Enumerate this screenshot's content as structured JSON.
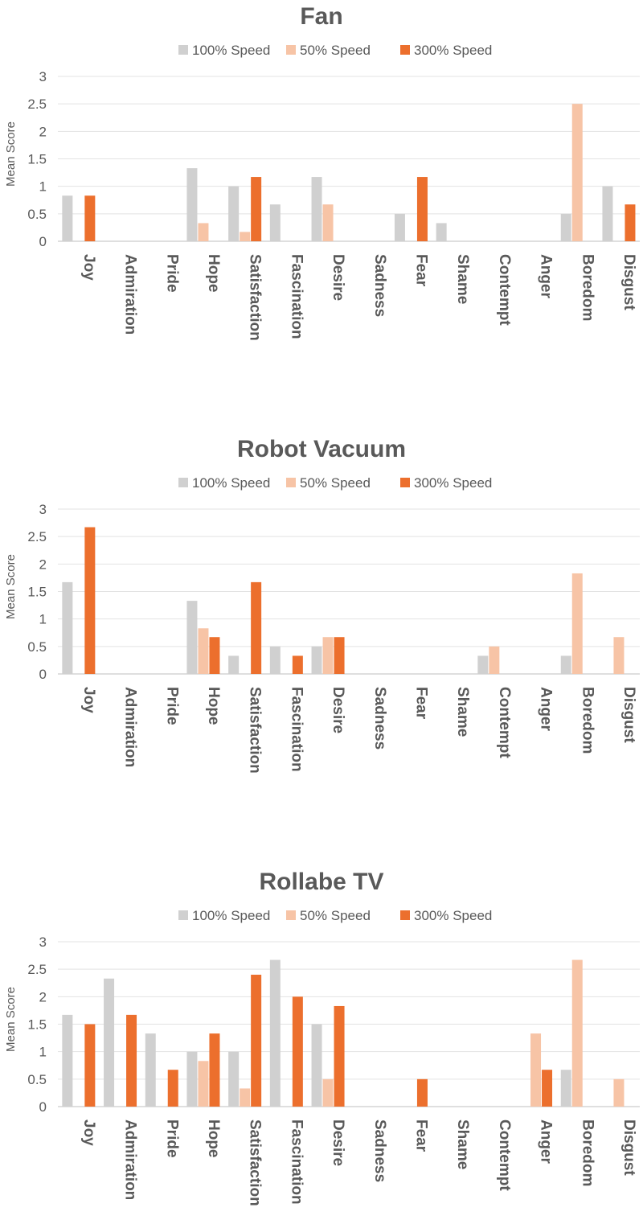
{
  "chart_data": [
    {
      "type": "bar",
      "title": "Fan",
      "ylabel": "Mean Score",
      "ylim": [
        0,
        3
      ],
      "yticks": [
        "0",
        "0.5",
        "1",
        "1.5",
        "2",
        "2.5",
        "3"
      ],
      "grid": true,
      "legend_position": "top",
      "categories": [
        "Joy",
        "Admiration",
        "Pride",
        "Hope",
        "Satisfaction",
        "Fascination",
        "Desire",
        "Sadness",
        "Fear",
        "Shame",
        "Contempt",
        "Anger",
        "Boredom",
        "Disgust"
      ],
      "series": [
        {
          "name": "100% Speed",
          "color": "#d0d0d0",
          "values": [
            0.83,
            0,
            0,
            1.33,
            1.0,
            0.67,
            1.17,
            0,
            0.5,
            0.33,
            0,
            0,
            0.5,
            1.0
          ]
        },
        {
          "name": "50% Speed",
          "color": "#f7c4a6",
          "values": [
            0,
            0,
            0,
            0.33,
            0.17,
            0,
            0.67,
            0,
            0,
            0,
            0,
            0,
            2.5,
            0
          ]
        },
        {
          "name": "300% Speed",
          "color": "#ec6f2d",
          "values": [
            0.83,
            0,
            0,
            0,
            1.17,
            0,
            0,
            0,
            1.17,
            0,
            0,
            0,
            0,
            0.67
          ]
        }
      ]
    },
    {
      "type": "bar",
      "title": "Robot Vacuum",
      "ylabel": "Mean Score",
      "ylim": [
        0,
        3
      ],
      "yticks": [
        "0",
        "0.5",
        "1",
        "1.5",
        "2",
        "2.5",
        "3"
      ],
      "grid": true,
      "legend_position": "top",
      "categories": [
        "Joy",
        "Admiration",
        "Pride",
        "Hope",
        "Satisfaction",
        "Fascination",
        "Desire",
        "Sadness",
        "Fear",
        "Shame",
        "Contempt",
        "Anger",
        "Boredom",
        "Disgust"
      ],
      "series": [
        {
          "name": "100% Speed",
          "color": "#d0d0d0",
          "values": [
            1.67,
            0,
            0,
            1.33,
            0.33,
            0.5,
            0.5,
            0,
            0,
            0,
            0.33,
            0,
            0.33,
            0
          ]
        },
        {
          "name": "50% Speed",
          "color": "#f7c4a6",
          "values": [
            0,
            0,
            0,
            0.83,
            0,
            0,
            0.67,
            0,
            0,
            0,
            0.5,
            0,
            1.83,
            0.67
          ]
        },
        {
          "name": "300% Speed",
          "color": "#ec6f2d",
          "values": [
            2.67,
            0,
            0,
            0.67,
            1.67,
            0.33,
            0.67,
            0,
            0,
            0,
            0,
            0,
            0,
            0
          ]
        }
      ]
    },
    {
      "type": "bar",
      "title": "Rollabe TV",
      "ylabel": "Mean Score",
      "ylim": [
        0,
        3
      ],
      "yticks": [
        "0",
        "0.5",
        "1",
        "1.5",
        "2",
        "2.5",
        "3"
      ],
      "grid": true,
      "legend_position": "top",
      "categories": [
        "Joy",
        "Admiration",
        "Pride",
        "Hope",
        "Satisfaction",
        "Fascination",
        "Desire",
        "Sadness",
        "Fear",
        "Shame",
        "Contempt",
        "Anger",
        "Boredom",
        "Disgust"
      ],
      "series": [
        {
          "name": "100% Speed",
          "color": "#d0d0d0",
          "values": [
            1.67,
            2.33,
            1.33,
            1.0,
            1.0,
            2.67,
            1.5,
            0,
            0,
            0,
            0,
            0,
            0.67,
            0
          ]
        },
        {
          "name": "50% Speed",
          "color": "#f7c4a6",
          "values": [
            0,
            0,
            0,
            0.83,
            0.33,
            0,
            0.5,
            0,
            0,
            0,
            0,
            1.33,
            2.67,
            0.5
          ]
        },
        {
          "name": "300% Speed",
          "color": "#ec6f2d",
          "values": [
            1.5,
            1.67,
            0.67,
            1.33,
            2.4,
            2.0,
            1.83,
            0,
            0.5,
            0,
            0,
            0.67,
            0,
            0
          ]
        }
      ]
    }
  ]
}
